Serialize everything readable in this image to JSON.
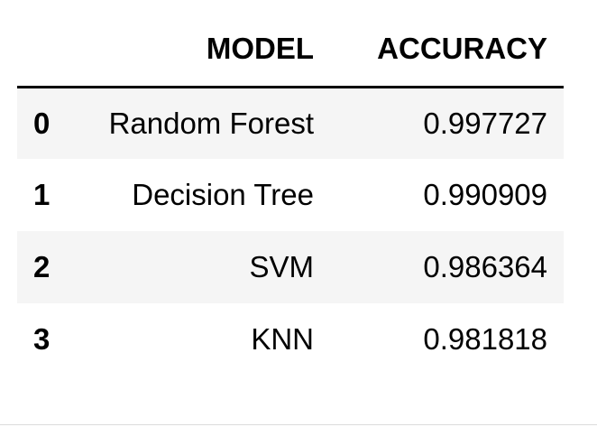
{
  "table": {
    "columns": {
      "index": "",
      "model": "MODEL",
      "accuracy": "ACCURACY"
    },
    "rows": [
      {
        "index": "0",
        "model": "Random Forest",
        "accuracy": "0.997727"
      },
      {
        "index": "1",
        "model": "Decision Tree",
        "accuracy": "0.990909"
      },
      {
        "index": "2",
        "model": "SVM",
        "accuracy": "0.986364"
      },
      {
        "index": "3",
        "model": "KNN",
        "accuracy": "0.981818"
      }
    ]
  },
  "colors": {
    "header_rule": "#000000",
    "stripe_row": "#f5f5f5",
    "background": "#ffffff"
  }
}
